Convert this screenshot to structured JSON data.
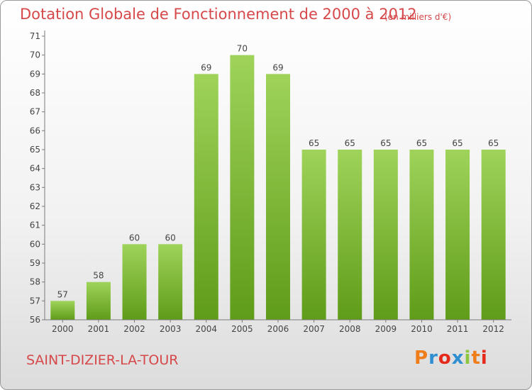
{
  "header": {
    "title": "Dotation Globale de Fonctionnement de 2000 à 2012",
    "unit": "(en milliers d'€)"
  },
  "footer": {
    "commune": "SAINT-DIZIER-LA-TOUR",
    "logo": "Proxiti"
  },
  "colors": {
    "title": "#d6484a",
    "bar_top": "#9fd35a",
    "bar_bottom": "#5f9c19",
    "logo_letters": [
      "#ef7d1a",
      "#2f8fd1",
      "#e5291b",
      "#2f8fd1",
      "#8cc63e",
      "#ef7d1a",
      "#e5291b"
    ]
  },
  "chart_data": {
    "type": "bar",
    "categories": [
      "2000",
      "2001",
      "2002",
      "2003",
      "2004",
      "2005",
      "2006",
      "2007",
      "2008",
      "2009",
      "2010",
      "2011",
      "2012"
    ],
    "values": [
      57,
      58,
      60,
      60,
      69,
      70,
      69,
      65,
      65,
      65,
      65,
      65,
      65
    ],
    "title": "Dotation Globale de Fonctionnement de 2000 à 2012",
    "ylim": [
      56,
      71
    ],
    "yticks": [
      56,
      57,
      58,
      59,
      60,
      61,
      62,
      63,
      64,
      65,
      66,
      67,
      68,
      69,
      70,
      71
    ],
    "grid": false,
    "legend": "none"
  }
}
